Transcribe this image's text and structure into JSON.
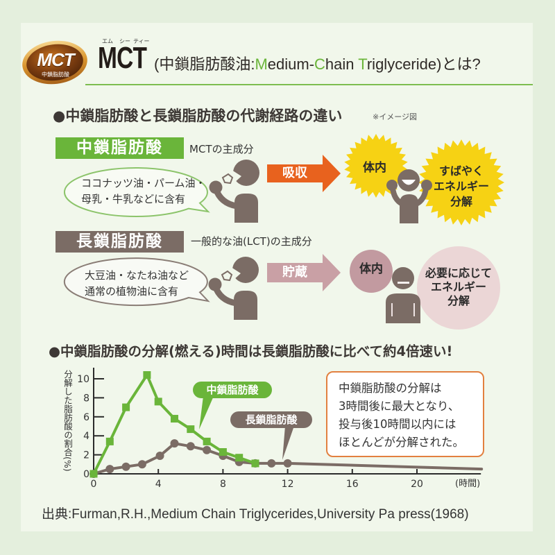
{
  "colors": {
    "outer_background": "#e4efdd",
    "panel_background": "#f1f7eb",
    "mct_green": "#6ab53a",
    "lct_brown": "#7b6c65",
    "absorb_arrow_orange": "#e8621e",
    "store_arrow_pink": "#c9a0a5",
    "burst_yellow": "#f6d214",
    "body_circle_pink": "#c29aa0",
    "energy_circle_pink": "#ebd6d6",
    "callout_border_orange": "#e2803f",
    "title_rule_green": "#7dbd4f"
  },
  "logo": {
    "badge_text": "MCT",
    "badge_subtext": "中鎖脂肪酸"
  },
  "header": {
    "acronym": "MCT",
    "ruby": [
      "エム",
      "シー",
      "ティー"
    ],
    "title_segments": [
      {
        "text": "(中鎖脂肪酸油:",
        "accent": false
      },
      {
        "text": "M",
        "accent": true
      },
      {
        "text": "edium-",
        "accent": false
      },
      {
        "text": "C",
        "accent": true
      },
      {
        "text": "hain ",
        "accent": false
      },
      {
        "text": "T",
        "accent": true
      },
      {
        "text": "riglyceride)とは?",
        "accent": false
      }
    ]
  },
  "section1": {
    "heading": "●中鎖脂肪酸と長鎖脂肪酸の代謝経路の違い",
    "note": "※イメージ図",
    "mct": {
      "label": "中鎖脂肪酸",
      "description": "MCTの主成分",
      "sources": [
        "ココナッツ油・パーム油・",
        "母乳・牛乳などに含有"
      ],
      "arrow": "吸収",
      "body": "体内",
      "result": [
        "すばやく",
        "エネルギー",
        "分解"
      ],
      "icons": [
        "person-eating-icon",
        "arrow-right-icon",
        "burst-icon",
        "person-cheering-icon"
      ]
    },
    "lct": {
      "label": "長鎖脂肪酸",
      "description": "一般的な油(LCT)の主成分",
      "sources": [
        "大豆油・なたね油など",
        "通常の植物油に含有"
      ],
      "arrow": "貯蔵",
      "body": "体内",
      "result": [
        "必要に応じて",
        "エネルギー",
        "分解"
      ],
      "icons": [
        "person-eating-icon",
        "arrow-right-icon",
        "circle-icon",
        "person-neutral-icon"
      ]
    }
  },
  "section2": {
    "heading": "●中鎖脂肪酸の分解(燃える)時間は長鎖脂肪酸に比べて約4倍速い!",
    "callout_lines": [
      "中鎖脂肪酸の分解は",
      "3時間後に最大となり、",
      "投与後10時間以内には",
      "ほとんどが分解された。"
    ]
  },
  "citation": "出典:Furman,R.H.,Medium Chain Triglycerides,University Pa press(1968)",
  "chart_data": {
    "type": "line",
    "title": "",
    "xlabel": "(時間)",
    "ylabel": "分解した脂肪酸の割合(%)",
    "xlim": [
      0,
      24
    ],
    "ylim": [
      0,
      11
    ],
    "xticks": [
      0,
      4,
      8,
      12,
      16,
      20
    ],
    "yticks": [
      0,
      2,
      4,
      6,
      8,
      10
    ],
    "grid": false,
    "legend": "inline callout labels pointing at each line",
    "series": [
      {
        "name": "中鎖脂肪酸",
        "color": "#6ab53a",
        "marker": "square",
        "points": [
          [
            0,
            0
          ],
          [
            1,
            3.4
          ],
          [
            2,
            7.0
          ],
          [
            3.3,
            10.4
          ],
          [
            4,
            7.6
          ],
          [
            5,
            5.8
          ],
          [
            6,
            4.7
          ],
          [
            7,
            3.4
          ],
          [
            8,
            2.3
          ],
          [
            9,
            1.7
          ],
          [
            10,
            1.1
          ]
        ]
      },
      {
        "name": "長鎖脂肪酸",
        "color": "#7b6c65",
        "marker": "circle",
        "points": [
          [
            0,
            0
          ],
          [
            1,
            0.5
          ],
          [
            2,
            0.75
          ],
          [
            3,
            1.0
          ],
          [
            4.1,
            1.9
          ],
          [
            5,
            3.2
          ],
          [
            6,
            2.9
          ],
          [
            7,
            2.5
          ],
          [
            8,
            1.9
          ],
          [
            9,
            1.25
          ],
          [
            10,
            1.1
          ],
          [
            11,
            1.1
          ],
          [
            12,
            1.1
          ]
        ],
        "line_extends_to": [
          [
            24,
            0.5
          ]
        ]
      }
    ],
    "annotations": [
      {
        "text": "中鎖脂肪酸",
        "points_to_series": 0
      },
      {
        "text": "長鎖脂肪酸",
        "points_to_series": 1
      }
    ]
  }
}
